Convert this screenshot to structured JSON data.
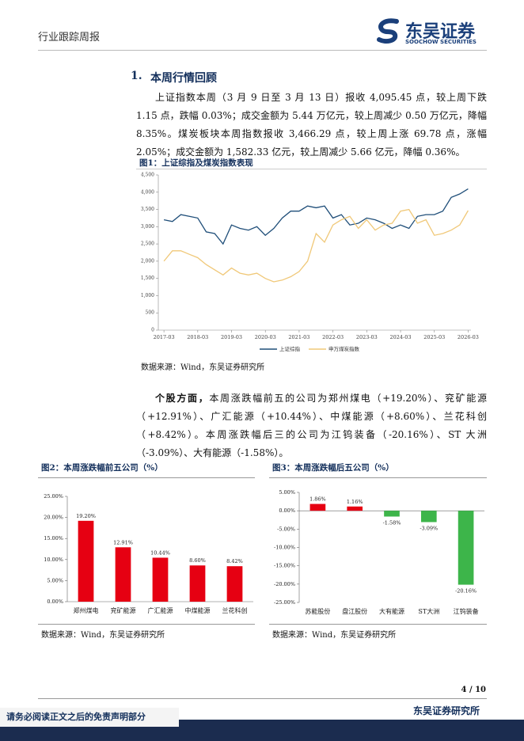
{
  "header": {
    "title": "行业跟踪周报",
    "logo_cn": "东吴证券",
    "logo_en": "SOOCHOW SECURITIES"
  },
  "section": {
    "number": "1.",
    "title": "本周行情回顾"
  },
  "paragraphs": [
    {
      "text": "上证指数本周（3 月 9 日至 3 月 13 日）报收 4,095.45 点，较上周下跌 1.15 点，跌幅 0.03%；成交金额为 5.44 万亿元，较上周减少 0.50 万亿元，降幅 8.35%。煤炭板块本周指数报收 3,466.29 点，较上周上涨 69.78 点，涨幅 2.05%；成交金额为 1,582.33 亿元，较上周减少 5.66 亿元，降幅 0.36%。"
    },
    {
      "lead": "个股方面，",
      "text": "本周涨跌幅前五的公司为郑州煤电（+19.20%）、兖矿能源（+12.91%）、广汇能源（+10.44%）、中煤能源（+8.60%）、兰花科创（+8.42%）。本周涨跌幅后三的公司为江钨装备（-20.16%）、ST 大洲（-3.09%）、大有能源（-1.58%）。"
    }
  ],
  "chart_data": [
    {
      "type": "line",
      "title": "图1：上证综指及煤炭指数表现",
      "source": "数据来源：Wind，东吴证券研究所",
      "x": [
        "2017-03",
        "2017-06",
        "2017-09",
        "2017-12",
        "2018-03",
        "2018-06",
        "2018-09",
        "2018-12",
        "2019-03",
        "2019-06",
        "2019-09",
        "2019-12",
        "2020-03",
        "2020-06",
        "2020-09",
        "2020-12",
        "2021-03",
        "2021-06",
        "2021-09",
        "2021-12",
        "2022-03",
        "2022-06",
        "2022-09",
        "2022-12",
        "2023-03",
        "2023-06",
        "2023-09",
        "2023-12",
        "2024-03",
        "2024-06",
        "2024-09",
        "2024-12",
        "2025-03",
        "2025-06",
        "2025-09",
        "2025-12",
        "2026-03"
      ],
      "series": [
        {
          "name": "上证综指",
          "color": "#1f4e79",
          "values": [
            3200,
            3150,
            3350,
            3300,
            3250,
            2850,
            2800,
            2500,
            3050,
            2950,
            2900,
            3000,
            2750,
            2950,
            3250,
            3450,
            3450,
            3600,
            3550,
            3600,
            3250,
            3350,
            3050,
            3100,
            3250,
            3200,
            3100,
            2950,
            3050,
            2950,
            3300,
            3350,
            3350,
            3450,
            3850,
            3950,
            4095
          ]
        },
        {
          "name": "申万煤炭指数",
          "color": "#f0c878",
          "values": [
            2000,
            2300,
            2300,
            2200,
            2100,
            1900,
            1750,
            1600,
            1800,
            1650,
            1600,
            1650,
            1500,
            1400,
            1450,
            1550,
            1700,
            2000,
            2800,
            2550,
            3050,
            3200,
            3300,
            2950,
            3200,
            2900,
            3050,
            3100,
            3450,
            3500,
            3100,
            3200,
            2750,
            2800,
            2900,
            3050,
            3466
          ]
        }
      ],
      "xlim": [
        "2017-01",
        "2026-04"
      ],
      "xticks": [
        "2017-03",
        "2018-03",
        "2019-03",
        "2020-03",
        "2021-03",
        "2022-03",
        "2023-03",
        "2024-03",
        "2025-03",
        "2026-03"
      ],
      "ylim": [
        0,
        4500
      ],
      "yticks": [
        0,
        500,
        {
          "value": 1000,
          "label": "1,000"
        },
        {
          "value": 1500,
          "label": "1,500"
        },
        {
          "value": 2000,
          "label": "2,000"
        },
        {
          "value": 2500,
          "label": "2,500"
        },
        {
          "value": 3000,
          "label": "3,000"
        },
        {
          "value": 3500,
          "label": "3,500"
        },
        {
          "value": 4000,
          "label": "4,000"
        },
        {
          "value": 4500,
          "label": "4,500"
        }
      ],
      "legend": "bottom"
    },
    {
      "type": "bar",
      "title": "图2：本周涨跌幅前五公司（%）",
      "source": "数据来源：Wind，东吴证券研究所",
      "categories": [
        "郑州煤电",
        "兖矿能源",
        "广汇能源",
        "中煤能源",
        "兰花科创"
      ],
      "values": [
        19.2,
        12.91,
        10.44,
        8.6,
        8.42
      ],
      "value_labels": [
        "19.20%",
        "12.91%",
        "10.44%",
        "8.60%",
        "8.42%"
      ],
      "color": "#e60012",
      "negative_color": "#3db54a",
      "ylim": [
        0,
        25
      ],
      "yticks": [
        {
          "value": 0,
          "label": "0.00%"
        },
        {
          "value": 5,
          "label": "5.00%"
        },
        {
          "value": 10,
          "label": "10.00%"
        },
        {
          "value": 15,
          "label": "15.00%"
        },
        {
          "value": 20,
          "label": "20.00%"
        },
        {
          "value": 25,
          "label": "25.00%"
        }
      ]
    },
    {
      "type": "bar",
      "title": "图3：本周涨跌幅后五公司（%）",
      "source": "数据来源：Wind，东吴证券研究所",
      "categories": [
        "苏能股份",
        "盘江股份",
        "大有能源",
        "ST大洲",
        "江钨装备"
      ],
      "values": [
        1.86,
        1.16,
        -1.58,
        -3.09,
        -20.16
      ],
      "value_labels": [
        "1.86%",
        "1.16%",
        "-1.58%",
        "-3.09%",
        "-20.16%"
      ],
      "color": "#e60012",
      "negative_color": "#3db54a",
      "ylim": [
        -25,
        5
      ],
      "yticks": [
        {
          "value": 5,
          "label": "5.00%"
        },
        {
          "value": 0,
          "label": "0.00%"
        },
        {
          "value": -5,
          "label": "-5.00%"
        },
        {
          "value": -10,
          "label": "-10.00%"
        },
        {
          "value": -15,
          "label": "-15.00%"
        },
        {
          "value": -20,
          "label": "-20.00%"
        },
        {
          "value": -25,
          "label": "-25.00%"
        }
      ]
    }
  ],
  "footer": {
    "page": "4 / 10",
    "org": "东吴证券研究所",
    "disclaimer": "请务必阅读正文之后的免责声明部分"
  }
}
